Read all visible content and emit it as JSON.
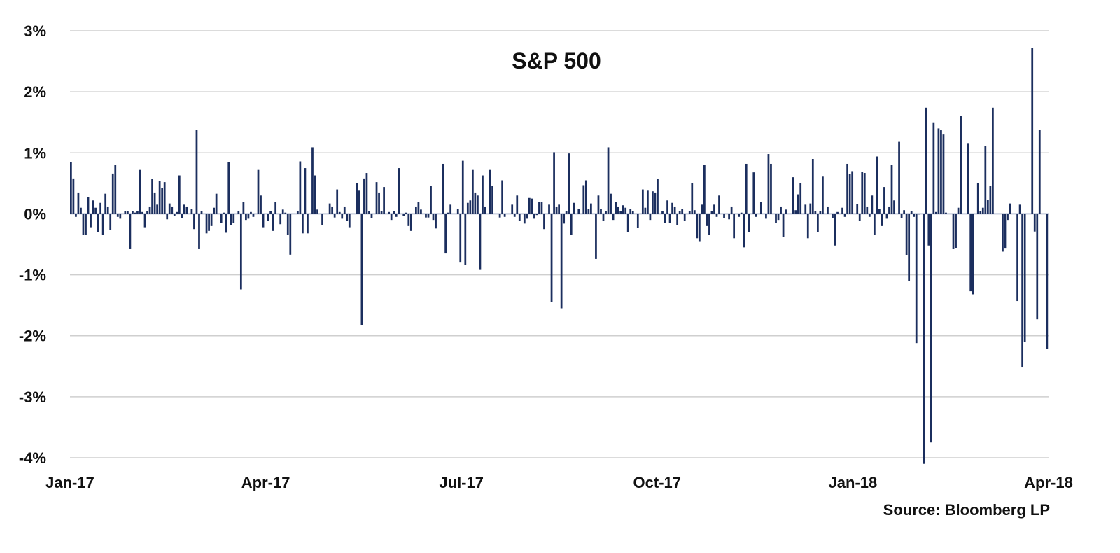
{
  "chart_data": {
    "type": "bar",
    "title": "S&P 500",
    "source": "Source: Bloomberg LP",
    "bar_color": "#1b2e5e",
    "grid_color": "#cfcfcf",
    "zero_line_color": "#bcc3d6",
    "grid": true,
    "ylim": [
      -4,
      3
    ],
    "y_ticks": [
      3,
      2,
      1,
      0,
      -1,
      -2,
      -3,
      -4
    ],
    "y_tick_labels": [
      "3%",
      "2%",
      "1%",
      "0%",
      "-1%",
      "-2%",
      "-3%",
      "-4%"
    ],
    "x_tick_labels": [
      "Jan-17",
      "Apr-17",
      "Jul-17",
      "Oct-17",
      "Jan-18",
      "Apr-18"
    ],
    "ylabel_unit": "%",
    "series": [
      {
        "values": [
          0.85,
          0.58,
          -0.05,
          0.35,
          0.1,
          -0.35,
          -0.34,
          0.28,
          -0.22,
          0.22,
          0.1,
          -0.3,
          0.18,
          -0.34,
          0.33,
          0.12,
          -0.27,
          0.66,
          0.8,
          -0.05,
          -0.08,
          0.0,
          0.05,
          0.04,
          -0.58,
          0.04,
          0.02,
          0.05,
          0.72,
          0.03,
          -0.22,
          0.05,
          0.12,
          0.57,
          0.35,
          0.15,
          0.54,
          0.42,
          0.52,
          -0.09,
          0.17,
          0.12,
          -0.04,
          0.03,
          0.63,
          -0.07,
          0.15,
          0.12,
          0.0,
          0.08,
          -0.25,
          1.38,
          -0.58,
          0.05,
          0.0,
          -0.32,
          -0.28,
          -0.2,
          0.1,
          0.33,
          0.0,
          -0.15,
          0.02,
          -0.31,
          0.85,
          -0.19,
          -0.15,
          0.0,
          0.05,
          -1.24,
          0.2,
          -0.1,
          -0.08,
          0.03,
          -0.05,
          0.0,
          0.72,
          0.3,
          -0.22,
          0.0,
          -0.12,
          0.05,
          -0.28,
          0.2,
          0.0,
          -0.17,
          0.07,
          0.02,
          -0.35,
          -0.67,
          0.0,
          0.0,
          0.05,
          0.86,
          -0.32,
          0.75,
          -0.32,
          0.0,
          1.09,
          0.63,
          0.07,
          0.0,
          -0.18,
          0.0,
          0.0,
          0.17,
          0.12,
          -0.06,
          0.4,
          0.03,
          -0.08,
          0.12,
          -0.12,
          -0.22,
          0.0,
          0.0,
          0.5,
          0.38,
          -1.82,
          0.58,
          0.67,
          0.04,
          -0.07,
          0.0,
          0.52,
          0.35,
          0.05,
          0.44,
          0.0,
          0.03,
          -0.1,
          0.05,
          -0.05,
          0.75,
          0.0,
          -0.04,
          0.02,
          -0.2,
          -0.28,
          0.0,
          0.12,
          0.2,
          0.07,
          0.0,
          -0.06,
          -0.06,
          0.46,
          -0.1,
          -0.24,
          0.0,
          0.0,
          0.82,
          -0.65,
          0.02,
          0.15,
          0.0,
          0.0,
          0.08,
          -0.8,
          0.87,
          -0.84,
          0.18,
          0.22,
          0.72,
          0.35,
          0.3,
          -0.92,
          0.63,
          0.12,
          0.0,
          0.72,
          0.46,
          0.0,
          0.0,
          -0.06,
          0.55,
          -0.05,
          0.0,
          0.0,
          0.15,
          -0.05,
          0.3,
          -0.12,
          0.0,
          -0.16,
          -0.08,
          0.26,
          0.25,
          -0.08,
          -0.02,
          0.2,
          0.19,
          -0.25,
          0.0,
          0.15,
          -1.45,
          1.01,
          0.12,
          0.15,
          -1.55,
          -0.16,
          0.05,
          0.99,
          -0.35,
          0.18,
          0.0,
          0.08,
          0.0,
          0.47,
          0.55,
          0.08,
          0.17,
          0.0,
          -0.74,
          0.3,
          0.08,
          -0.12,
          0.05,
          1.09,
          0.33,
          -0.1,
          0.2,
          0.12,
          0.05,
          0.14,
          0.1,
          -0.3,
          0.08,
          0.04,
          0.0,
          -0.23,
          0.0,
          0.4,
          0.1,
          0.38,
          -0.1,
          0.37,
          0.35,
          0.57,
          0.0,
          0.05,
          -0.15,
          0.22,
          -0.15,
          0.18,
          0.12,
          -0.18,
          0.05,
          0.08,
          -0.12,
          0.0,
          0.05,
          0.51,
          0.06,
          -0.4,
          -0.46,
          0.15,
          0.8,
          -0.2,
          -0.34,
          0.05,
          0.15,
          -0.05,
          0.3,
          0.0,
          -0.07,
          0.0,
          -0.09,
          0.12,
          -0.4,
          0.0,
          -0.05,
          0.02,
          -0.55,
          0.82,
          -0.3,
          0.0,
          0.68,
          -0.05,
          0.0,
          0.2,
          0.0,
          -0.08,
          0.98,
          0.82,
          0.0,
          -0.15,
          -0.1,
          0.12,
          -0.38,
          0.07,
          0.0,
          0.0,
          0.6,
          0.06,
          0.32,
          0.51,
          0.0,
          0.15,
          -0.4,
          0.17,
          0.9,
          0.05,
          -0.3,
          0.04,
          0.61,
          0.0,
          0.12,
          0.0,
          -0.07,
          -0.52,
          0.03,
          0.0,
          0.1,
          -0.05,
          0.82,
          0.65,
          0.7,
          0.0,
          0.16,
          -0.12,
          0.69,
          0.67,
          0.12,
          -0.05,
          0.3,
          -0.35,
          0.94,
          0.08,
          -0.2,
          0.44,
          -0.08,
          0.12,
          0.8,
          0.22,
          0.0,
          1.18,
          -0.07,
          0.06,
          -0.68,
          -1.1,
          0.05,
          -0.05,
          -2.12,
          -0.01,
          0.0,
          -4.1,
          1.74,
          -0.52,
          -3.75,
          1.5,
          0.03,
          1.4,
          1.37,
          1.3,
          0.02,
          0.0,
          0.0,
          -0.58,
          -0.56,
          0.1,
          1.61,
          0.0,
          0.0,
          1.16,
          -1.27,
          -1.32,
          0.0,
          0.51,
          0.05,
          0.1,
          1.11,
          0.23,
          0.46,
          1.74,
          0.0,
          0.0,
          0.0,
          -0.62,
          -0.57,
          -0.1,
          0.17,
          0.0,
          0.0,
          -1.43,
          0.15,
          -2.52,
          -2.1,
          0.0,
          0.0,
          2.72,
          -0.29,
          -1.73,
          1.38,
          0.0,
          0.0,
          -2.22
        ]
      }
    ]
  }
}
